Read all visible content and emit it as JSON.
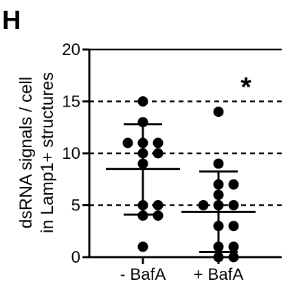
{
  "panel_label": "H",
  "chart_data": {
    "type": "scatter",
    "ylabel_lines": [
      "dsRNA signals / cell",
      "in Lamp1+ structures"
    ],
    "ylim": [
      0,
      20
    ],
    "yticks": [
      0,
      5,
      10,
      15,
      20
    ],
    "dashed_gridlines": [
      5,
      10,
      15
    ],
    "categories": [
      "- BafA",
      "+ BafA"
    ],
    "series": [
      {
        "values": [
          15,
          13,
          11,
          11,
          11,
          10,
          10,
          9,
          5,
          5,
          4,
          4,
          1
        ],
        "mean": 8.5,
        "sd_lower": 4.1,
        "sd_upper": 12.8
      },
      {
        "values": [
          14,
          9,
          7,
          7,
          6,
          5,
          5,
          5,
          3,
          3,
          1,
          1,
          0,
          0
        ],
        "mean": 4.35,
        "sd_lower": 0.5,
        "sd_upper": 8.25
      }
    ],
    "annotations": [
      {
        "category": "+ BafA",
        "text": "*"
      }
    ]
  }
}
